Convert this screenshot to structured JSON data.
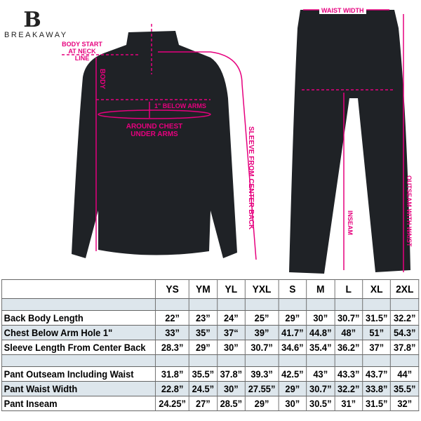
{
  "brand": "BREAKAWAY",
  "labels": {
    "body_start": "BODY START AT NECK LINE",
    "body": "BODY",
    "below_arms": "1\" BELOW ARMS",
    "chest": "AROUND CHEST UNDER ARMS",
    "sleeve": "SLEEVE FROM CENTER BACK",
    "waist": "WAIST WIDTH",
    "inseam": "INSEAM",
    "outseam": "OUTSEAM WITH WAIST"
  },
  "colors": {
    "accent": "#e6007e",
    "garment": "#1f2226",
    "row_shade": "#dde6ec"
  },
  "table": {
    "sizes": [
      "YS",
      "YM",
      "YL",
      "YXL",
      "S",
      "M",
      "L",
      "XL",
      "2XL"
    ],
    "rows": [
      {
        "label": "Back Body Length",
        "values": [
          "22”",
          "23”",
          "24”",
          "25”",
          "29”",
          "30”",
          "30.7”",
          "31.5”",
          "32.2”"
        ]
      },
      {
        "label": "Chest Below Arm Hole 1\"",
        "values": [
          "33”",
          "35”",
          "37“",
          "39”",
          "41.7”",
          "44.8”",
          "48”",
          "51”",
          "54.3”"
        ]
      },
      {
        "label": "Sleeve Length From Center Back",
        "values": [
          "28.3”",
          "29”",
          "30”",
          "30.7”",
          "34.6”",
          "35.4”",
          "36.2”",
          "37”",
          "37.8”"
        ]
      },
      {
        "label": "Pant Outseam Including Waist",
        "values": [
          "31.8”",
          "35.5”",
          "37.8”",
          "39.3”",
          "42.5”",
          "43”",
          "43.3”",
          "43.7”",
          "44”"
        ]
      },
      {
        "label": "Pant Waist Width",
        "values": [
          "22.8”",
          "24.5”",
          "30”",
          "27.55”",
          "29”",
          "30.7”",
          "32.2”",
          "33.8”",
          "35.5”"
        ]
      },
      {
        "label": "Pant Inseam",
        "values": [
          "24.25”",
          "27”",
          "28.5”",
          "29”",
          "30”",
          "30.5”",
          "31”",
          "31.5”",
          "32”"
        ]
      }
    ]
  }
}
